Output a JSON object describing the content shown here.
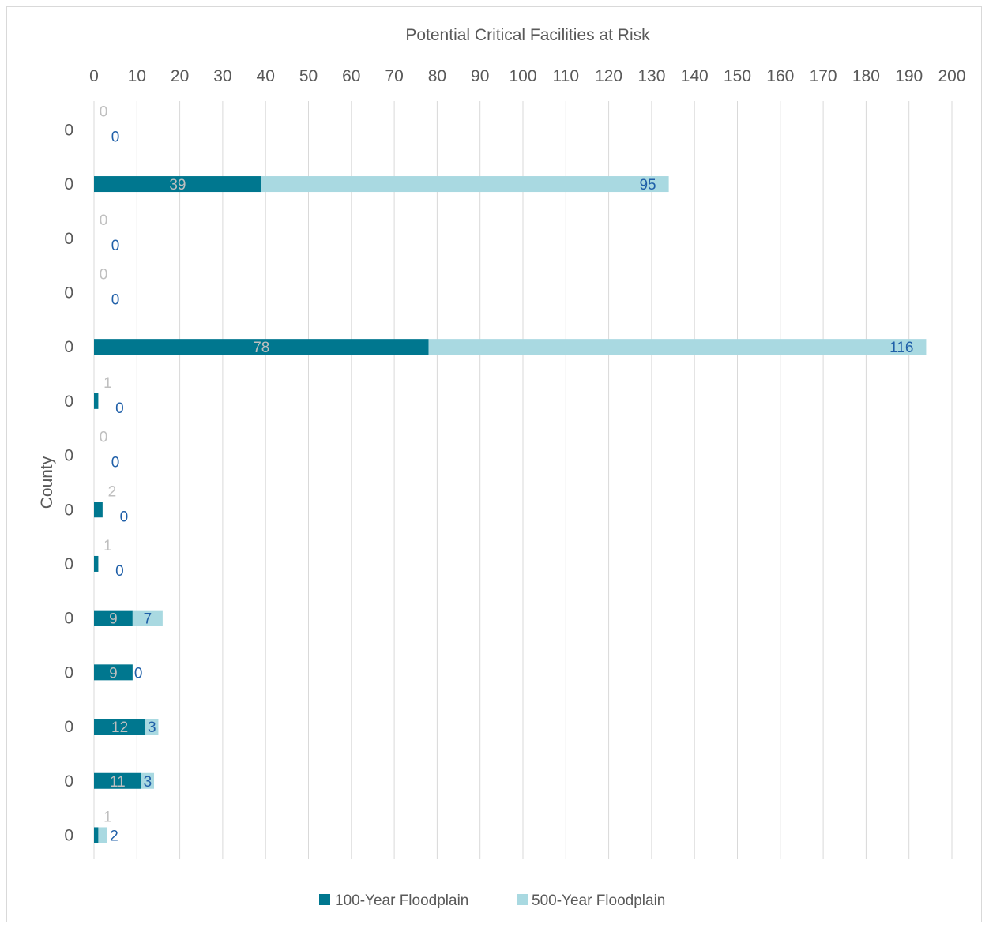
{
  "chart_data": {
    "type": "bar",
    "orientation": "horizontal",
    "stacked": true,
    "title": "",
    "xlabel": "Potential Critical Facilities at Risk",
    "ylabel": "County",
    "xlim": [
      0,
      200
    ],
    "x_ticks": [
      0,
      10,
      20,
      30,
      40,
      50,
      60,
      70,
      80,
      90,
      100,
      110,
      120,
      130,
      140,
      150,
      160,
      170,
      180,
      190,
      200
    ],
    "x_axis_position": "top",
    "grid": "vertical",
    "legend_position": "bottom",
    "categories": [
      "0",
      "0",
      "0",
      "0",
      "0",
      "0",
      "0",
      "0",
      "0",
      "0",
      "0",
      "0",
      "0",
      "0"
    ],
    "series": [
      {
        "name": "100-Year Floodplain",
        "color": "#00778f",
        "label_color": "#bfbfbf",
        "values": [
          0,
          39,
          0,
          0,
          78,
          1,
          0,
          2,
          1,
          9,
          9,
          12,
          11,
          1
        ]
      },
      {
        "name": "500-Year Floodplain",
        "color": "#a9d9e1",
        "label_color": "#1f5fa8",
        "values": [
          0,
          95,
          0,
          0,
          116,
          0,
          0,
          0,
          0,
          7,
          0,
          3,
          3,
          2
        ]
      }
    ]
  }
}
